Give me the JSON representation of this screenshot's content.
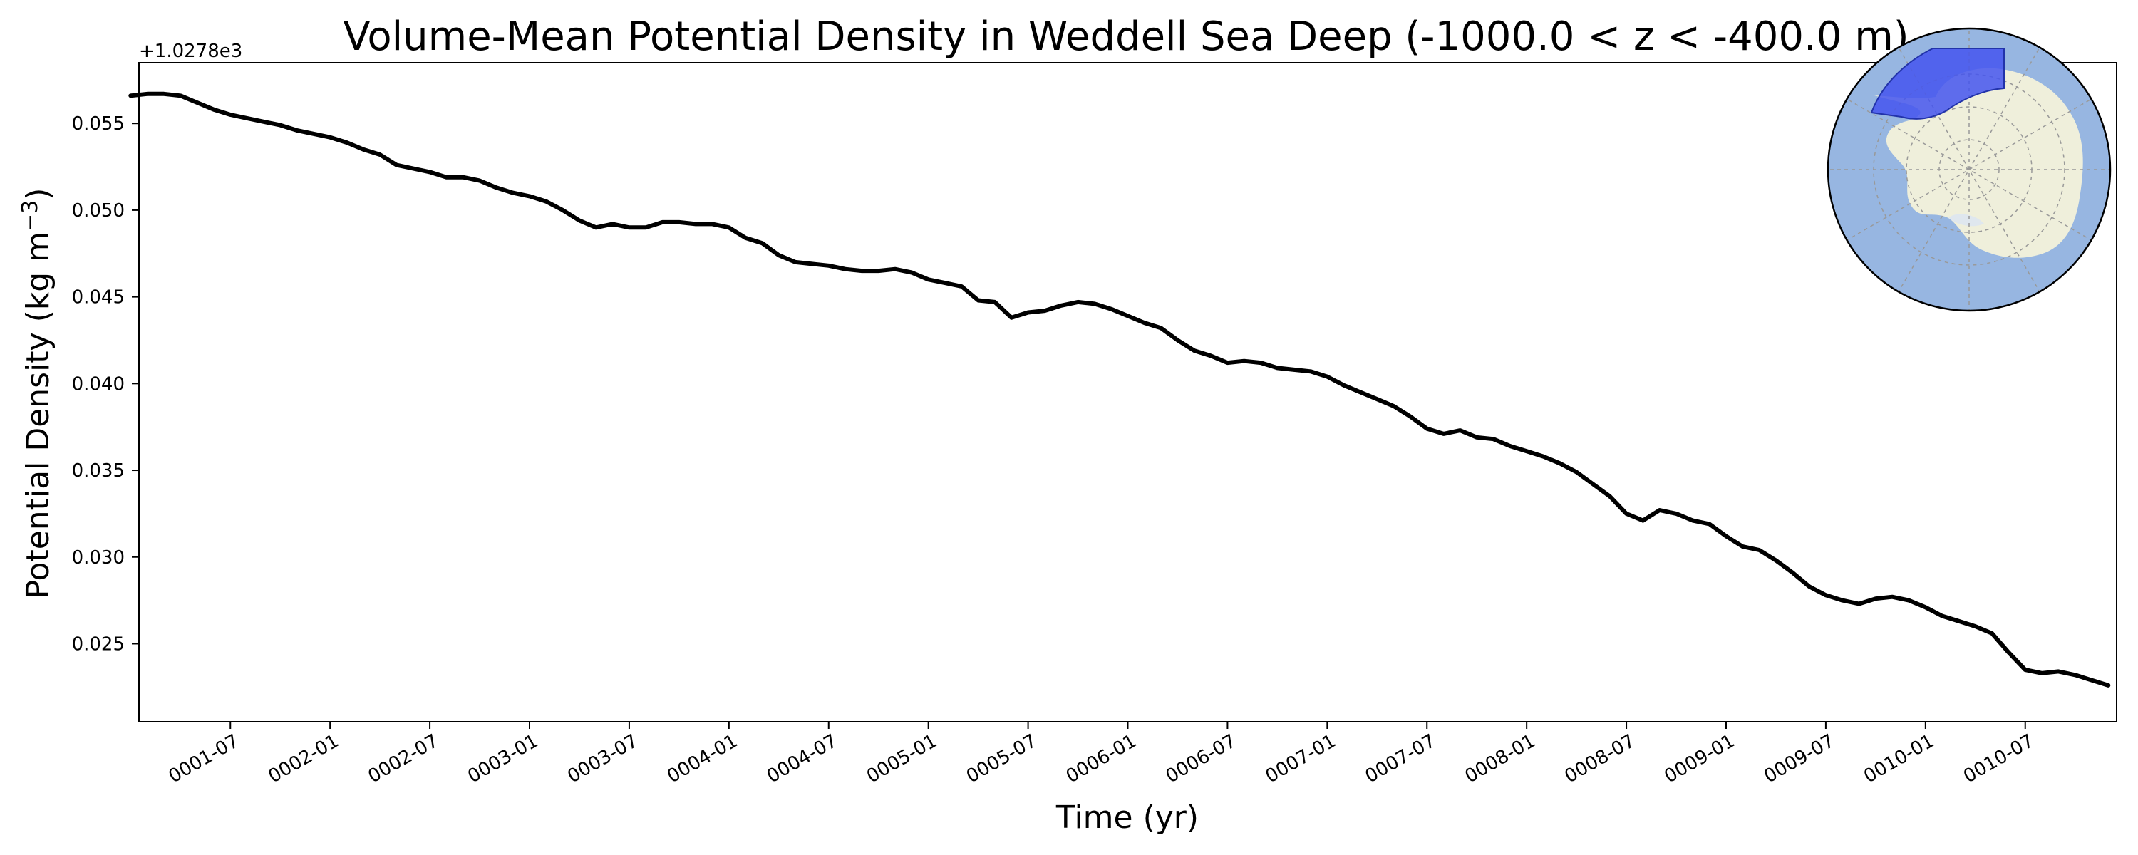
{
  "chart_data": {
    "type": "line",
    "title": "Volume-Mean Potential Density in Weddell Sea Deep (-1000.0 < z < -400.0 m)",
    "xlabel": "Time (yr)",
    "ylabel": "Potential Density (kg m",
    "ylabel_exponent": "−3",
    "ylabel_close": ")",
    "y_offset_label": "+1.0278e3",
    "xlim": [
      "0001-01-16",
      "0010-12-16"
    ],
    "ylim": [
      0.0205,
      0.0585
    ],
    "yticks": [
      0.025,
      0.03,
      0.035,
      0.04,
      0.045,
      0.05,
      0.055
    ],
    "ytick_labels": [
      "0.025",
      "0.030",
      "0.035",
      "0.040",
      "0.045",
      "0.050",
      "0.055"
    ],
    "xticks": [
      "0001-07",
      "0002-01",
      "0002-07",
      "0003-01",
      "0003-07",
      "0004-01",
      "0004-07",
      "0005-01",
      "0005-07",
      "0006-01",
      "0006-07",
      "0007-01",
      "0007-07",
      "0008-01",
      "0008-07",
      "0009-01",
      "0009-07",
      "0010-01",
      "0010-07"
    ],
    "grid": false,
    "line_color": "#000000",
    "series": [
      {
        "x": [
          "0001-01",
          "0001-02",
          "0001-03",
          "0001-04",
          "0001-05",
          "0001-06",
          "0001-07",
          "0001-08",
          "0001-09",
          "0001-10",
          "0001-11",
          "0001-12",
          "0002-01",
          "0002-02",
          "0002-03",
          "0002-04",
          "0002-05",
          "0002-06",
          "0002-07",
          "0002-08",
          "0002-09",
          "0002-10",
          "0002-11",
          "0002-12",
          "0003-01",
          "0003-02",
          "0003-03",
          "0003-04",
          "0003-05",
          "0003-06",
          "0003-07",
          "0003-08",
          "0003-09",
          "0003-10",
          "0003-11",
          "0003-12",
          "0004-01",
          "0004-02",
          "0004-03",
          "0004-04",
          "0004-05",
          "0004-06",
          "0004-07",
          "0004-08",
          "0004-09",
          "0004-10",
          "0004-11",
          "0004-12",
          "0005-01",
          "0005-02",
          "0005-03",
          "0005-04",
          "0005-05",
          "0005-06",
          "0005-07",
          "0005-08",
          "0005-09",
          "0005-10",
          "0005-11",
          "0005-12",
          "0006-01",
          "0006-02",
          "0006-03",
          "0006-04",
          "0006-05",
          "0006-06",
          "0006-07",
          "0006-08",
          "0006-09",
          "0006-10",
          "0006-11",
          "0006-12",
          "0007-01",
          "0007-02",
          "0007-03",
          "0007-04",
          "0007-05",
          "0007-06",
          "0007-07",
          "0007-08",
          "0007-09",
          "0007-10",
          "0007-11",
          "0007-12",
          "0008-01",
          "0008-02",
          "0008-03",
          "0008-04",
          "0008-05",
          "0008-06",
          "0008-07",
          "0008-08",
          "0008-09",
          "0008-10",
          "0008-11",
          "0008-12",
          "0009-01",
          "0009-02",
          "0009-03",
          "0009-04",
          "0009-05",
          "0009-06",
          "0009-07",
          "0009-08",
          "0009-09",
          "0009-10",
          "0009-11",
          "0009-12",
          "0010-01",
          "0010-02",
          "0010-03",
          "0010-04",
          "0010-05",
          "0010-06",
          "0010-07",
          "0010-08",
          "0010-09",
          "0010-10",
          "0010-11",
          "0010-12"
        ],
        "y": [
          0.0566,
          0.0567,
          0.0567,
          0.0566,
          0.0562,
          0.0558,
          0.0555,
          0.0553,
          0.0551,
          0.0549,
          0.0546,
          0.0544,
          0.0542,
          0.0539,
          0.0535,
          0.0532,
          0.0526,
          0.0524,
          0.0522,
          0.0519,
          0.0519,
          0.0517,
          0.0513,
          0.051,
          0.0508,
          0.0505,
          0.05,
          0.0494,
          0.049,
          0.0492,
          0.049,
          0.049,
          0.0493,
          0.0493,
          0.0492,
          0.0492,
          0.049,
          0.0484,
          0.0481,
          0.0474,
          0.047,
          0.0469,
          0.0468,
          0.0466,
          0.0465,
          0.0465,
          0.0466,
          0.0464,
          0.046,
          0.0458,
          0.0456,
          0.0448,
          0.0447,
          0.0438,
          0.0441,
          0.0442,
          0.0445,
          0.0447,
          0.0446,
          0.0443,
          0.0439,
          0.0435,
          0.0432,
          0.0425,
          0.0419,
          0.0416,
          0.0412,
          0.0413,
          0.0412,
          0.0409,
          0.0408,
          0.0407,
          0.0404,
          0.0399,
          0.0395,
          0.0391,
          0.0387,
          0.0381,
          0.0374,
          0.0371,
          0.0373,
          0.0369,
          0.0368,
          0.0364,
          0.0361,
          0.0358,
          0.0354,
          0.0349,
          0.0342,
          0.0335,
          0.0325,
          0.0321,
          0.0327,
          0.0325,
          0.0321,
          0.0319,
          0.0312,
          0.0306,
          0.0304,
          0.0298,
          0.0291,
          0.0283,
          0.0278,
          0.0275,
          0.0273,
          0.0276,
          0.0277,
          0.0275,
          0.0271,
          0.0266,
          0.0263,
          0.026,
          0.0256,
          0.0245,
          0.0235,
          0.0233,
          0.0234,
          0.0232,
          0.0229,
          0.0226
        ]
      }
    ],
    "inset_map": {
      "ocean_color": "#97b6e1",
      "land_color": "#efefdb",
      "region_color": "#4455ee",
      "graticule_color": "#999999"
    }
  }
}
